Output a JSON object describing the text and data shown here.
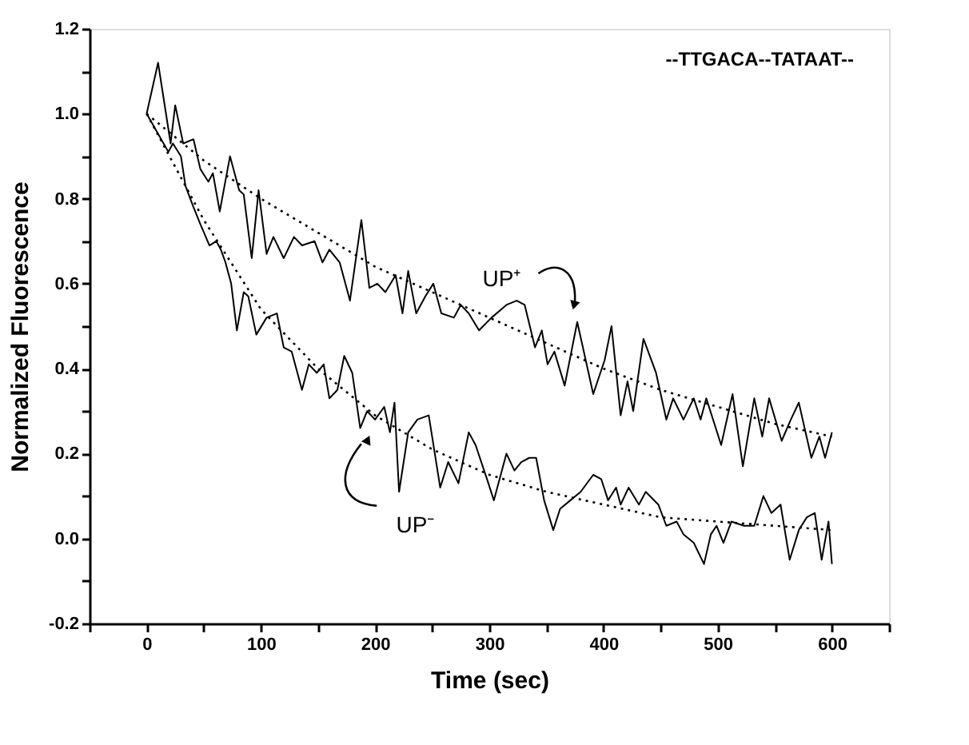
{
  "chart_data": {
    "type": "line",
    "xlabel": "Time (sec)",
    "ylabel": "Normalized Fluorescence",
    "xlim": [
      -50,
      650
    ],
    "ylim": [
      -0.2,
      1.2
    ],
    "xticks": [
      {
        "value": -50,
        "label": null
      },
      0,
      {
        "value": 50,
        "label": null
      },
      100,
      {
        "value": 150,
        "label": null
      },
      200,
      {
        "value": 250,
        "label": null
      },
      300,
      {
        "value": 350,
        "label": null
      },
      400,
      {
        "value": 450,
        "label": null
      },
      500,
      {
        "value": 550,
        "label": null
      },
      600,
      {
        "value": 650,
        "label": null
      }
    ],
    "yticks": [
      -0.2,
      {
        "value": -0.1,
        "label": null
      },
      {
        "value": 0,
        "label": "0.0"
      },
      {
        "value": 0.1,
        "label": null
      },
      0.2,
      {
        "value": 0.3,
        "label": null
      },
      0.4,
      {
        "value": 0.5,
        "label": null
      },
      0.6,
      {
        "value": 0.7,
        "label": null
      },
      0.8,
      {
        "value": 0.9,
        "label": null
      },
      {
        "value": 1,
        "label": "1.0"
      },
      {
        "value": 1.1,
        "label": null
      },
      1.2
    ],
    "grid": false,
    "marker": "none",
    "series": [
      {
        "color": "#000000",
        "line_style": "solid",
        "x": [
          0,
          10,
          21,
          25,
          32,
          41,
          47,
          54,
          58,
          64,
          73,
          81,
          85,
          92,
          98,
          105,
          111,
          120,
          129,
          136,
          147,
          154,
          160,
          169,
          178,
          188,
          195,
          202,
          209,
          218,
          224,
          229,
          236,
          244,
          251,
          258,
          269,
          275,
          282,
          291,
          302,
          315,
          324,
          331,
          340,
          346,
          351,
          357,
          366,
          377,
          391,
          401,
          407,
          415,
          421,
          426,
          435,
          446,
          455,
          461,
          470,
          479,
          485,
          490,
          503,
          513,
          522,
          532,
          539,
          545,
          556,
          564,
          571,
          582,
          589,
          594,
          600
        ],
        "values": [
          1.0,
          1.12,
          0.93,
          1.02,
          0.93,
          0.94,
          0.87,
          0.84,
          0.86,
          0.77,
          0.9,
          0.82,
          0.81,
          0.66,
          0.82,
          0.67,
          0.71,
          0.66,
          0.71,
          0.69,
          0.7,
          0.65,
          0.68,
          0.65,
          0.56,
          0.75,
          0.59,
          0.6,
          0.58,
          0.62,
          0.53,
          0.63,
          0.53,
          0.57,
          0.6,
          0.53,
          0.52,
          0.55,
          0.53,
          0.49,
          0.52,
          0.55,
          0.56,
          0.55,
          0.45,
          0.49,
          0.41,
          0.44,
          0.36,
          0.51,
          0.34,
          0.42,
          0.5,
          0.29,
          0.37,
          0.3,
          0.47,
          0.39,
          0.28,
          0.33,
          0.28,
          0.33,
          0.28,
          0.33,
          0.22,
          0.34,
          0.17,
          0.33,
          0.24,
          0.33,
          0.23,
          0.28,
          0.32,
          0.19,
          0.24,
          0.19,
          0.25
        ]
      },
      {
        "color": "#000000",
        "line_style": "solid",
        "x": [
          0,
          19,
          23,
          30,
          34,
          41,
          47,
          55,
          61,
          65,
          69,
          74,
          79,
          85,
          89,
          96,
          105,
          114,
          120,
          127,
          136,
          142,
          149,
          155,
          160,
          167,
          173,
          180,
          187,
          193,
          200,
          208,
          213,
          217,
          221,
          229,
          237,
          247,
          257,
          264,
          273,
          282,
          288,
          298,
          304,
          315,
          322,
          328,
          335,
          341,
          348,
          356,
          362,
          371,
          380,
          391,
          398,
          404,
          411,
          415,
          422,
          431,
          437,
          448,
          455,
          464,
          470,
          479,
          488,
          494,
          499,
          505,
          512,
          523,
          532,
          540,
          547,
          555,
          563,
          571,
          578,
          585,
          591,
          597,
          600
        ],
        "values": [
          1.0,
          0.91,
          0.93,
          0.9,
          0.83,
          0.78,
          0.74,
          0.69,
          0.7,
          0.68,
          0.65,
          0.6,
          0.49,
          0.58,
          0.57,
          0.48,
          0.52,
          0.53,
          0.45,
          0.44,
          0.35,
          0.41,
          0.39,
          0.41,
          0.33,
          0.35,
          0.43,
          0.39,
          0.26,
          0.3,
          0.28,
          0.31,
          0.25,
          0.32,
          0.11,
          0.25,
          0.28,
          0.29,
          0.12,
          0.18,
          0.13,
          0.25,
          0.22,
          0.14,
          0.09,
          0.2,
          0.16,
          0.18,
          0.19,
          0.19,
          0.09,
          0.02,
          0.07,
          0.09,
          0.11,
          0.15,
          0.14,
          0.09,
          0.12,
          0.08,
          0.12,
          0.08,
          0.11,
          0.08,
          0.03,
          0.04,
          0.01,
          -0.01,
          -0.06,
          0.01,
          0.03,
          -0.01,
          0.04,
          0.03,
          0.03,
          0.1,
          0.06,
          0.08,
          -0.05,
          0.02,
          0.05,
          0.06,
          -0.05,
          0.04,
          -0.06
        ]
      },
      {
        "color": "#000000",
        "line_style": "dotted",
        "x": [
          0,
          50,
          100,
          150,
          200,
          250,
          300,
          350,
          400,
          450,
          500,
          550,
          600
        ],
        "values": [
          1.0,
          0.89,
          0.8,
          0.72,
          0.64,
          0.58,
          0.52,
          0.46,
          0.4,
          0.35,
          0.31,
          0.27,
          0.24
        ]
      },
      {
        "color": "#000000",
        "line_style": "dotted",
        "x": [
          0,
          50,
          100,
          150,
          200,
          250,
          300,
          350,
          400,
          450,
          500,
          550,
          600
        ],
        "values": [
          1.0,
          0.75,
          0.54,
          0.4,
          0.29,
          0.21,
          0.15,
          0.11,
          0.08,
          0.05,
          0.04,
          0.03,
          0.02
        ]
      }
    ],
    "annotations": [
      "UP⁺",
      "UP⁻",
      "--TTGACA--TATAAT--"
    ]
  }
}
